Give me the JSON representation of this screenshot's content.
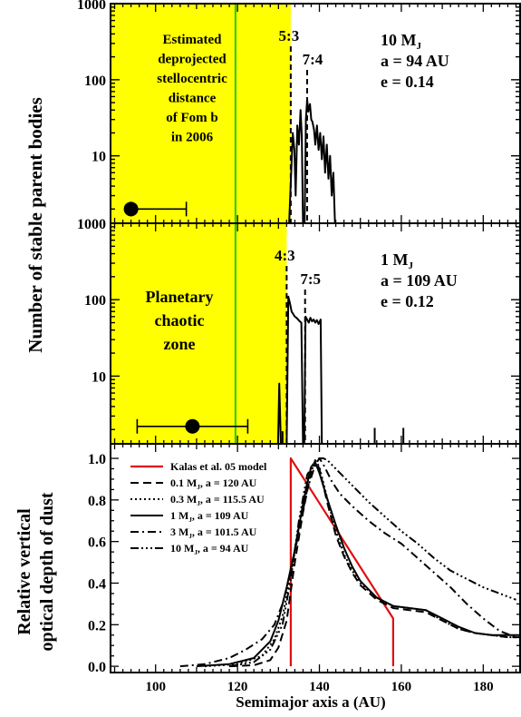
{
  "figure": {
    "ylabel_top": "Number of stable parent bodies",
    "ylabel_bottom_line1": "Relative vertical",
    "ylabel_bottom_line2": "optical depth of dust",
    "xlabel": "Semimajor axis a (AU)"
  },
  "colors": {
    "chaotic_zone": "#ffff00",
    "fomalhaut_line": "#22cc22",
    "kalas_model": "#e01010",
    "curves": "#000000"
  },
  "chart_data": [
    {
      "type": "line",
      "panel": "top",
      "yscale": "log",
      "ylim": [
        1.3,
        1000
      ],
      "xlim": [
        89,
        189
      ],
      "yticks": [
        "1000",
        "100",
        "10"
      ],
      "shaded_region": {
        "from": 89,
        "to": 133,
        "color": "yellow"
      },
      "vline_fom_b": 119.5,
      "shaded_text": [
        "Estimated",
        "deprojected",
        "stellocentric",
        "distance",
        "of Fom b",
        "in 2006"
      ],
      "planet_text": {
        "mass_main": "10 M",
        "mass_sub": "J",
        "a": "a = 94 AU",
        "e": "e = 0.14"
      },
      "resonances": [
        {
          "label": "5:3",
          "x": 133
        },
        {
          "label": "7:4",
          "x": 137
        }
      ],
      "errorbar": {
        "x": 94,
        "xerr_low": 94,
        "xerr_high": 107.5,
        "y": 2.0
      },
      "series": [
        {
          "x": [
            132.6,
            133.2,
            133.5,
            133.9,
            134.2,
            134.6,
            135.0,
            135.4,
            135.7,
            136.0,
            136.4,
            136.7,
            137.0,
            137.3,
            137.7,
            138.0,
            138.3,
            138.7,
            139.0,
            139.4,
            139.8,
            140.2,
            140.6,
            141.0,
            141.4,
            141.8,
            142.2,
            142.6,
            143.0,
            143.4,
            143.8
          ],
          "y": [
            1.3,
            8,
            20,
            12,
            3,
            25,
            14,
            40,
            18,
            1.3,
            1.3,
            30,
            55,
            38,
            48,
            30,
            28,
            22,
            14,
            25,
            12,
            20,
            9,
            18,
            6,
            14,
            5,
            10,
            3,
            6,
            1.3
          ]
        }
      ]
    },
    {
      "type": "line",
      "panel": "middle",
      "yscale": "log",
      "ylim": [
        1.3,
        1000
      ],
      "xlim": [
        89,
        189
      ],
      "yticks": [
        "1000",
        "100",
        "10"
      ],
      "shaded_region": {
        "from": 89,
        "to": 132,
        "color": "yellow"
      },
      "vline_fom_b": 119.5,
      "shaded_text": [
        "Planetary",
        "chaotic",
        "zone"
      ],
      "planet_text": {
        "mass_main": "1 M",
        "mass_sub": "J",
        "a": "a = 109 AU",
        "e": "e = 0.12"
      },
      "resonances": [
        {
          "label": "4:3",
          "x": 132
        },
        {
          "label": "7:5",
          "x": 136.5
        }
      ],
      "errorbar": {
        "x": 109,
        "xerr_low": 95.5,
        "xerr_high": 122.5,
        "y": 2.2
      },
      "series": [
        {
          "x": [
            129.9,
            130.2,
            130.6,
            131.0,
            131.3,
            131.6,
            132.0,
            132.4,
            132.8,
            133.2,
            133.6,
            134.0,
            134.4,
            134.8,
            135.2,
            135.6,
            136.0,
            136.3,
            136.6,
            137.0,
            137.4,
            137.8,
            138.2,
            138.6,
            139.0,
            139.4,
            139.8,
            140.3,
            140.6
          ],
          "y": [
            1.3,
            8,
            1.3,
            1.3,
            1.3,
            1.3,
            1.3,
            110,
            90,
            70,
            65,
            60,
            58,
            55,
            52,
            50,
            1.3,
            1.3,
            60,
            55,
            50,
            58,
            52,
            55,
            50,
            54,
            48,
            55,
            1.3
          ]
        }
      ],
      "spikes": [
        {
          "x": 131.0,
          "y": 1.9
        },
        {
          "x": 153.5,
          "y": 2.1
        },
        {
          "x": 160.5,
          "y": 2.1
        }
      ]
    },
    {
      "type": "line",
      "panel": "bottom",
      "ylim": [
        -0.03,
        1.07
      ],
      "xlim": [
        89,
        189
      ],
      "xticks": [
        100,
        120,
        140,
        160,
        180
      ],
      "yticks": [
        "0.0",
        "0.2",
        "0.4",
        "0.6",
        "0.8",
        "1.0"
      ],
      "legend": [
        {
          "name": "Kalas et al. 05 model",
          "style": "solid-red"
        },
        {
          "name": "0.1 M",
          "sub": "J",
          "rest": ", a = 120 AU",
          "style": "dashed"
        },
        {
          "name": "0.3 M",
          "sub": "J",
          "rest": ", a = 115.5 AU",
          "style": "dotted"
        },
        {
          "name": "1 M",
          "sub": "J",
          "rest": ", a = 109 AU",
          "style": "solid"
        },
        {
          "name": "3 M",
          "sub": "J",
          "rest": ", a = 101.5 AU",
          "style": "dashdot"
        },
        {
          "name": "10 M",
          "sub": "J",
          "rest": ", a = 94 AU",
          "style": "dashdotdotdot"
        }
      ],
      "series": [
        {
          "name": "Kalas et al. 05 model",
          "x": [
            133,
            133,
            158,
            158
          ],
          "y": [
            0.0,
            1.0,
            0.23,
            0.0
          ]
        },
        {
          "name": "0.1 MJ, a = 120 AU",
          "x": [
            118,
            124,
            128,
            130,
            132,
            134,
            136,
            138,
            139,
            140,
            142,
            144,
            146,
            148,
            150,
            154,
            158,
            162,
            166,
            170,
            174,
            178,
            182,
            186,
            189
          ],
          "y": [
            0.0,
            0.005,
            0.03,
            0.09,
            0.22,
            0.5,
            0.74,
            0.94,
            0.99,
            0.95,
            0.78,
            0.63,
            0.53,
            0.45,
            0.39,
            0.32,
            0.28,
            0.27,
            0.26,
            0.22,
            0.18,
            0.16,
            0.15,
            0.14,
            0.14
          ]
        },
        {
          "name": "0.3 MJ, a = 115.5 AU",
          "x": [
            112,
            120,
            126,
            129,
            131,
            133,
            135,
            137,
            139,
            140,
            142,
            144,
            146,
            148,
            150,
            154,
            158,
            162,
            166,
            170,
            174,
            178,
            182,
            186,
            189
          ],
          "y": [
            0.0,
            0.01,
            0.05,
            0.13,
            0.24,
            0.44,
            0.68,
            0.88,
            0.99,
            0.96,
            0.8,
            0.65,
            0.54,
            0.46,
            0.4,
            0.33,
            0.29,
            0.28,
            0.27,
            0.22,
            0.18,
            0.16,
            0.15,
            0.14,
            0.14
          ]
        },
        {
          "name": "1 MJ, a = 109 AU",
          "x": [
            110,
            118,
            124,
            128,
            130,
            132,
            134,
            136,
            137,
            138,
            139,
            140,
            142,
            144,
            146,
            148,
            150,
            154,
            158,
            162,
            166,
            170,
            174,
            178,
            182,
            186,
            189
          ],
          "y": [
            0.0,
            0.01,
            0.04,
            0.12,
            0.22,
            0.38,
            0.56,
            0.78,
            0.88,
            0.96,
            0.98,
            0.93,
            0.8,
            0.68,
            0.57,
            0.48,
            0.41,
            0.33,
            0.29,
            0.28,
            0.27,
            0.23,
            0.19,
            0.16,
            0.15,
            0.15,
            0.15
          ]
        },
        {
          "name": "3 MJ, a = 101.5 AU",
          "x": [
            106,
            112,
            118,
            122,
            126,
            129,
            131,
            133,
            135,
            137,
            139,
            140,
            141,
            143,
            145,
            148,
            152,
            156,
            160,
            164,
            168,
            172,
            176,
            180,
            184,
            188
          ],
          "y": [
            0.0,
            0.01,
            0.04,
            0.08,
            0.13,
            0.2,
            0.3,
            0.45,
            0.65,
            0.85,
            0.97,
            1.0,
            0.97,
            0.89,
            0.83,
            0.77,
            0.7,
            0.64,
            0.59,
            0.52,
            0.45,
            0.38,
            0.3,
            0.23,
            0.17,
            0.14
          ]
        },
        {
          "name": "10 MJ, a = 94 AU",
          "x": [
            118,
            124,
            128,
            131,
            133,
            135,
            137,
            139,
            140,
            141,
            142,
            143,
            145,
            148,
            152,
            156,
            160,
            164,
            168,
            172,
            176,
            180,
            184,
            188
          ],
          "y": [
            0.0,
            0.02,
            0.08,
            0.2,
            0.42,
            0.7,
            0.92,
            0.99,
            1.0,
            1.0,
            0.99,
            0.97,
            0.93,
            0.87,
            0.79,
            0.72,
            0.65,
            0.59,
            0.52,
            0.46,
            0.42,
            0.38,
            0.35,
            0.32
          ]
        }
      ]
    }
  ]
}
